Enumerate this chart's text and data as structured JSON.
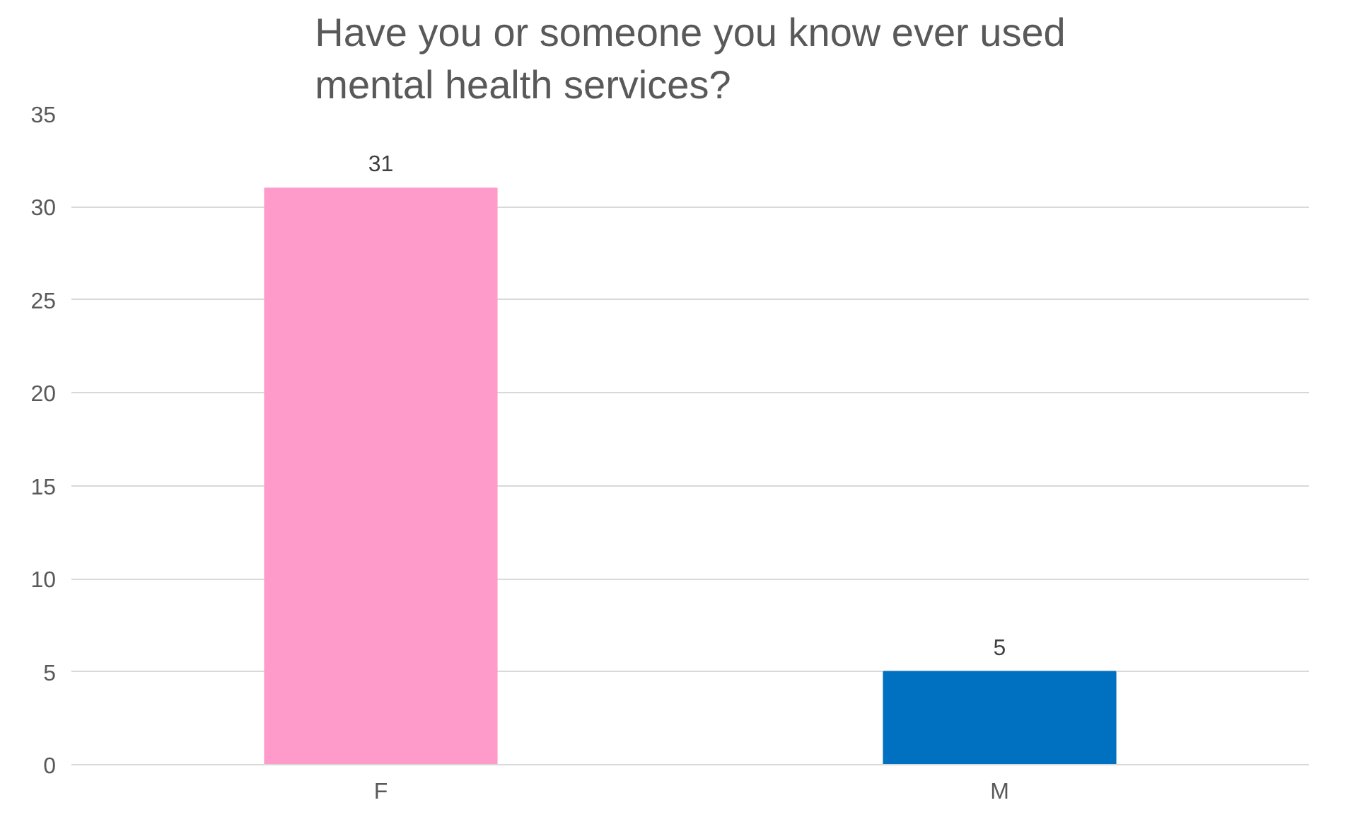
{
  "chart_data": {
    "type": "bar",
    "title": "Have you or someone you know ever used mental health services?",
    "categories": [
      "F",
      "M"
    ],
    "values": [
      31,
      5
    ],
    "colors": [
      "#ff9bcb",
      "#0070c0"
    ],
    "ylim": [
      0,
      35
    ],
    "yticks": [
      0,
      5,
      10,
      15,
      20,
      25,
      30,
      35
    ],
    "grid": "y",
    "data_labels": true
  }
}
